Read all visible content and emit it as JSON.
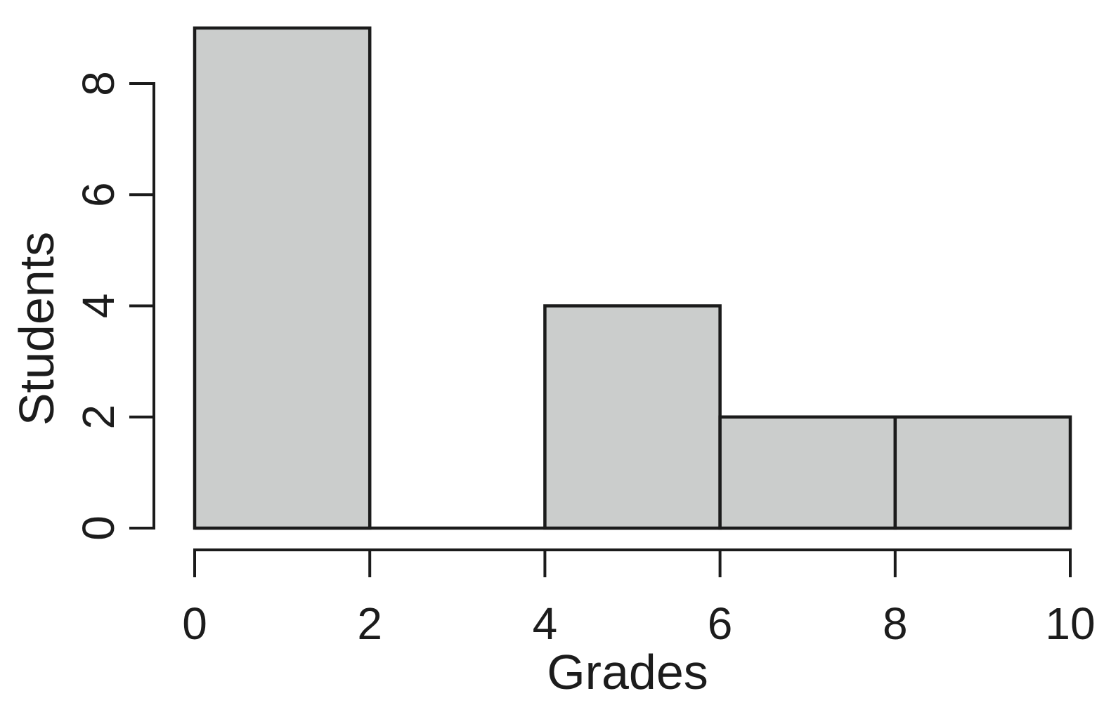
{
  "figure": {
    "background": "#ffffff"
  },
  "chart_data": {
    "type": "bar",
    "subtype": "histogram",
    "title": "",
    "xlabel": "Grades",
    "ylabel": "Students",
    "bins": [
      [
        0,
        2
      ],
      [
        2,
        4
      ],
      [
        4,
        6
      ],
      [
        6,
        8
      ],
      [
        8,
        10
      ]
    ],
    "counts": [
      9,
      0,
      4,
      2,
      2
    ],
    "x_ticks": [
      0,
      2,
      4,
      6,
      8,
      10
    ],
    "y_ticks": [
      0,
      2,
      4,
      6,
      8
    ],
    "xlim": [
      0,
      10
    ],
    "ylim": [
      0,
      9
    ],
    "grid": false,
    "legend": false,
    "bar_fill": "#cbcdcc",
    "bar_stroke": "#1b1b1b",
    "axis_color": "#1b1b1b",
    "text_color": "#1c1c1c"
  }
}
